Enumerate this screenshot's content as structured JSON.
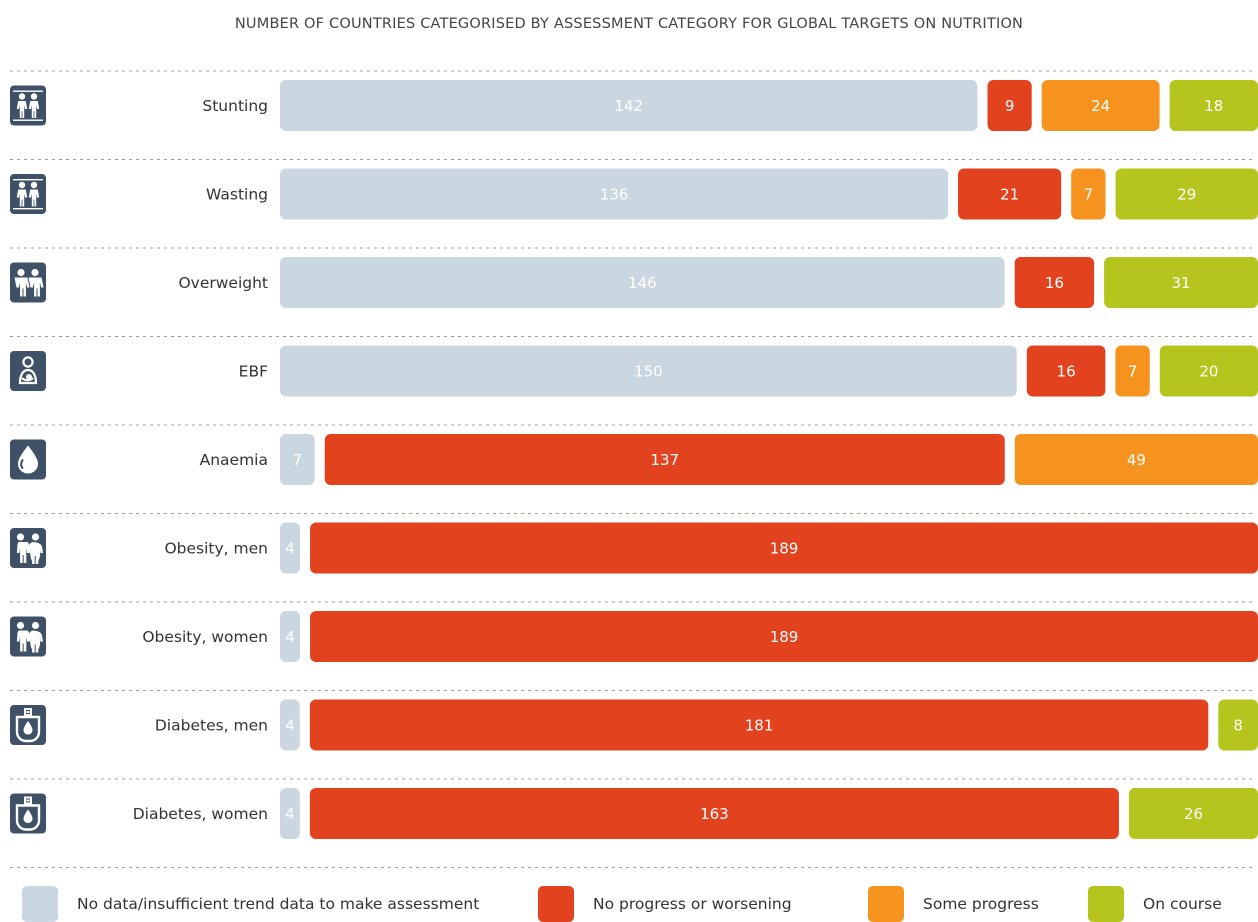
{
  "chart_data": {
    "type": "bar",
    "title": "NUMBER OF COUNTRIES CATEGORISED BY ASSESSMENT CATEGORY FOR GLOBAL TARGETS ON NUTRITION",
    "categories": [
      "Stunting",
      "Wasting",
      "Overweight",
      "EBF",
      "Anaemia",
      "Obesity, men",
      "Obesity, women",
      "Diabetes, men",
      "Diabetes, women"
    ],
    "icons": [
      "child-pair-icon",
      "child-pair-icon",
      "overweight-pair-icon",
      "breastfeeding-icon",
      "blood-drop-icon",
      "obese-adults-icon",
      "obese-adults-icon",
      "glucose-meter-icon",
      "glucose-meter-icon"
    ],
    "stacked": true,
    "series": [
      {
        "name": "No data/insufficient trend data to make assessment",
        "color": "#cad7e1",
        "values": [
          142,
          136,
          146,
          150,
          7,
          4,
          4,
          4,
          4
        ]
      },
      {
        "name": "No progress or worsening",
        "color": "#e3421f",
        "values": [
          9,
          21,
          16,
          16,
          137,
          189,
          189,
          181,
          163
        ]
      },
      {
        "name": "Some progress",
        "color": "#f6931f",
        "values": [
          24,
          7,
          0,
          7,
          49,
          0,
          0,
          0,
          0
        ]
      },
      {
        "name": "On course",
        "color": "#b6c51d",
        "values": [
          18,
          29,
          31,
          20,
          0,
          0,
          0,
          8,
          26
        ]
      }
    ],
    "icon_color": "#3f5166",
    "grid": "dotted separators between rows",
    "legend_position": "bottom"
  }
}
